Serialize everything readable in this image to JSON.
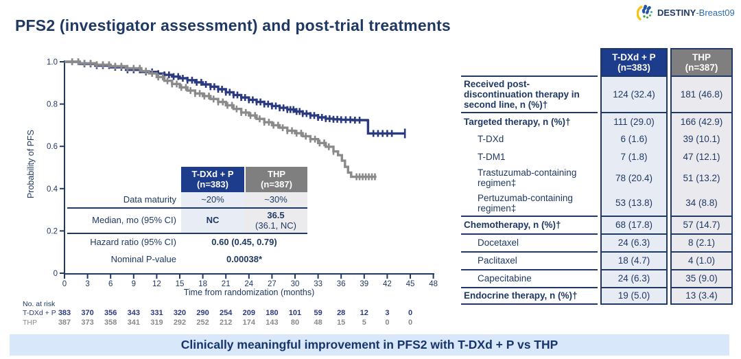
{
  "title": "PFS2 (investigator assessment) and post-trial treatments",
  "logo": {
    "icon": "destiny-fan-icon",
    "text_bold": "DESTINY",
    "text_rest": "-Breast09"
  },
  "colors": {
    "navy_text": "#1f3864",
    "header_blue": "#1d3d8c",
    "header_gray": "#7f7f7f",
    "curve_blue": "#2b3a80",
    "curve_gray": "#8a8a8a",
    "banner_bg": "#d8e7f9",
    "cell_bg_blue": "#e7ebf3",
    "cell_bg_gray": "#eaeaee"
  },
  "chart_data": {
    "type": "line",
    "subtype": "kaplan-meier-step",
    "title": "",
    "xlabel": "Time from randomization (months)",
    "ylabel": "Probability of PFS",
    "xlim": [
      0,
      48
    ],
    "ylim": [
      0,
      1.0
    ],
    "xticks": [
      0,
      3,
      6,
      9,
      12,
      15,
      18,
      21,
      24,
      27,
      30,
      33,
      36,
      39,
      42,
      45,
      48
    ],
    "yticks": [
      0,
      0.2,
      0.4,
      0.6,
      0.8,
      1.0
    ],
    "grid": false,
    "legend_position": "none",
    "series": [
      {
        "name": "T-DXd + P",
        "color": "#2b3a80",
        "points": [
          [
            0,
            1.0
          ],
          [
            2,
            0.99
          ],
          [
            4,
            0.982
          ],
          [
            6,
            0.974
          ],
          [
            8,
            0.962
          ],
          [
            10,
            0.952
          ],
          [
            12,
            0.944
          ],
          [
            13,
            0.938
          ],
          [
            14,
            0.93
          ],
          [
            15,
            0.922
          ],
          [
            16,
            0.913
          ],
          [
            17,
            0.903
          ],
          [
            18,
            0.893
          ],
          [
            19,
            0.882
          ],
          [
            20,
            0.87
          ],
          [
            21,
            0.856
          ],
          [
            22,
            0.843
          ],
          [
            23,
            0.831
          ],
          [
            24,
            0.82
          ],
          [
            25,
            0.81
          ],
          [
            26,
            0.8
          ],
          [
            27,
            0.791
          ],
          [
            28,
            0.782
          ],
          [
            29,
            0.774
          ],
          [
            30,
            0.765
          ],
          [
            31,
            0.755
          ],
          [
            32,
            0.746
          ],
          [
            33,
            0.737
          ],
          [
            34,
            0.731
          ],
          [
            35,
            0.728
          ],
          [
            36,
            0.726
          ],
          [
            37.5,
            0.724
          ],
          [
            39.4,
            0.723
          ],
          [
            39.5,
            0.661
          ],
          [
            44.3,
            0.661
          ]
        ],
        "censor_months": [
          1,
          1.8,
          2.6,
          3.4,
          4.2,
          5,
          5.8,
          6.6,
          7.4,
          8.2,
          9,
          9.8,
          10.6,
          11.4,
          12.2,
          13,
          13.6,
          14.2,
          14.8,
          15.4,
          16,
          16.6,
          17.2,
          17.8,
          18.4,
          19,
          19.5,
          20,
          20.5,
          21,
          21.5,
          22,
          22.5,
          23,
          23.5,
          24,
          24.5,
          25,
          25.5,
          26,
          26.5,
          27,
          27.5,
          28,
          28.5,
          29,
          29.4,
          29.8,
          30.2,
          30.6,
          31,
          31.5,
          32,
          32.5,
          33,
          33.5,
          34,
          34.5,
          35,
          35.5,
          36,
          36.6,
          37.2,
          37.8,
          38.4,
          40.2,
          40.8,
          41.4,
          42,
          42.6,
          44.3
        ]
      },
      {
        "name": "THP",
        "color": "#8a8a8a",
        "points": [
          [
            0,
            1.0
          ],
          [
            2,
            0.993
          ],
          [
            4,
            0.986
          ],
          [
            6,
            0.979
          ],
          [
            8,
            0.969
          ],
          [
            10,
            0.956
          ],
          [
            11,
            0.945
          ],
          [
            12,
            0.928
          ],
          [
            13,
            0.91
          ],
          [
            14,
            0.895
          ],
          [
            15,
            0.879
          ],
          [
            16,
            0.864
          ],
          [
            17,
            0.85
          ],
          [
            18,
            0.838
          ],
          [
            19,
            0.824
          ],
          [
            20,
            0.81
          ],
          [
            21,
            0.794
          ],
          [
            22,
            0.777
          ],
          [
            23,
            0.76
          ],
          [
            24,
            0.746
          ],
          [
            25,
            0.73
          ],
          [
            26,
            0.714
          ],
          [
            27,
            0.7
          ],
          [
            28,
            0.688
          ],
          [
            29,
            0.674
          ],
          [
            30,
            0.662
          ],
          [
            31,
            0.648
          ],
          [
            32,
            0.634
          ],
          [
            33,
            0.616
          ],
          [
            34,
            0.598
          ],
          [
            35,
            0.576
          ],
          [
            35.6,
            0.558
          ],
          [
            36.1,
            0.532
          ],
          [
            36.5,
            0.503
          ],
          [
            36.9,
            0.476
          ],
          [
            37.3,
            0.456
          ],
          [
            40.6,
            0.456
          ]
        ],
        "censor_months": [
          1,
          1.8,
          2.6,
          3.4,
          4.2,
          5,
          5.8,
          6.6,
          7.4,
          8.2,
          9,
          9.8,
          10.6,
          11.4,
          12.2,
          12.8,
          13.4,
          14,
          14.6,
          15.2,
          15.8,
          16.4,
          17,
          17.6,
          18.2,
          18.8,
          19.4,
          20,
          20.6,
          21.2,
          21.8,
          22.4,
          23,
          23.6,
          24.2,
          24.8,
          25.4,
          26,
          26.6,
          27.2,
          27.8,
          28.4,
          29,
          29.6,
          30.2,
          30.8,
          31.4,
          32,
          32.6,
          33.2,
          33.8,
          34.4,
          35,
          38,
          38.4,
          38.8,
          39.2,
          39.6,
          40,
          40.4
        ]
      }
    ]
  },
  "inset_table": {
    "col_headers": [
      {
        "line1": "T-DXd + P",
        "line2": "(n=383)"
      },
      {
        "line1": "THP",
        "line2": "(n=387)"
      }
    ],
    "rows": [
      {
        "label": "Data maturity",
        "tdxd": "~20%",
        "thp": "~30%"
      },
      {
        "label": "Median, mo (95% CI)",
        "tdxd": "NC",
        "thp_line1": "36.5",
        "thp_line2": "(36.1, NC)"
      },
      {
        "label": "Hazard ratio (95% CI)",
        "value": "0.60 (0.45, 0.79)"
      },
      {
        "label": "Nominal P-value",
        "value": "0.00038*"
      }
    ]
  },
  "risk_table": {
    "heading": "No. at risk",
    "rows": [
      {
        "label": "T-DXd + P",
        "color": "#2b3a80",
        "values": [
          "383",
          "370",
          "356",
          "343",
          "331",
          "320",
          "290",
          "254",
          "209",
          "180",
          "101",
          "59",
          "28",
          "12",
          "3",
          "0"
        ]
      },
      {
        "label": "THP",
        "color": "#8a8a8a",
        "values": [
          "387",
          "373",
          "358",
          "341",
          "319",
          "292",
          "252",
          "212",
          "174",
          "143",
          "80",
          "48",
          "15",
          "5",
          "0",
          "0"
        ]
      }
    ]
  },
  "right_table": {
    "col_headers": [
      {
        "line1": "T-DXd + P",
        "line2": "(n=383)"
      },
      {
        "line1": "THP",
        "line2": "(n=387)"
      }
    ],
    "rows": [
      {
        "label": "Received post-discontinuation therapy in second line, n (%)†",
        "bold": true,
        "indent": false,
        "tdxd": "124 (32.4)",
        "thp": "181 (46.8)",
        "top_border": true
      },
      {
        "label": "Targeted therapy, n (%)†",
        "bold": true,
        "indent": false,
        "tdxd": "111 (29.0)",
        "thp": "166 (42.9)",
        "top_border": true
      },
      {
        "label": "T-DXd",
        "bold": false,
        "indent": true,
        "tdxd": "6 (1.6)",
        "thp": "39 (10.1)",
        "top_border": false
      },
      {
        "label": "T-DM1",
        "bold": false,
        "indent": true,
        "tdxd": "7 (1.8)",
        "thp": "47 (12.1)",
        "top_border": false
      },
      {
        "label": "Trastuzumab-containing regimen‡",
        "bold": false,
        "indent": true,
        "tdxd": "78 (20.4)",
        "thp": "51 (13.2)",
        "top_border": false
      },
      {
        "label": "Pertuzumab-containing regimen‡",
        "bold": false,
        "indent": true,
        "tdxd": "53 (13.8)",
        "thp": "34 (8.8)",
        "top_border": false
      },
      {
        "label": "Chemotherapy, n (%)†",
        "bold": true,
        "indent": false,
        "tdxd": "68 (17.8)",
        "thp": "57 (14.7)",
        "top_border": true
      },
      {
        "label": "Docetaxel",
        "bold": false,
        "indent": true,
        "tdxd": "24 (6.3)",
        "thp": "8 (2.1)",
        "top_border": true
      },
      {
        "label": "Paclitaxel",
        "bold": false,
        "indent": true,
        "tdxd": "18 (4.7)",
        "thp": "4 (1.0)",
        "top_border": true
      },
      {
        "label": "Capecitabine",
        "bold": false,
        "indent": true,
        "tdxd": "24 (6.3)",
        "thp": "35 (9.0)",
        "top_border": true
      },
      {
        "label": "Endocrine therapy, n (%)†",
        "bold": true,
        "indent": false,
        "tdxd": "19 (5.0)",
        "thp": "13 (3.4)",
        "top_border": true,
        "bottom_border": true
      }
    ]
  },
  "banner": {
    "text": "Clinically meaningful improvement in PFS2 with T-DXd + P vs THP"
  }
}
